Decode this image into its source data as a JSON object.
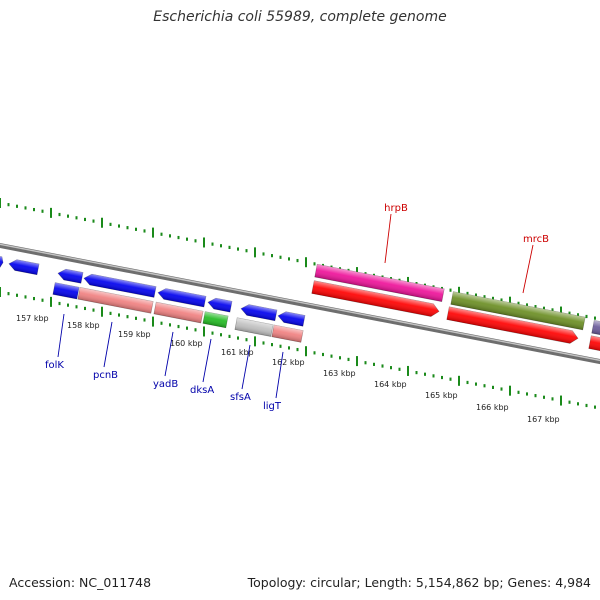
{
  "title": "Escherichia coli 55989, complete genome",
  "footer": {
    "accession": "Accession: NC_011748",
    "summary": "Topology: circular; Length: 5,154,862 bp; Genes: 4,984"
  },
  "colors": {
    "backbone": "#8a8a8a",
    "ticks": "#1a8a1a",
    "blue_gene": "#0000ee",
    "salmon_gene": "#f08080",
    "green_gene": "#22bb22",
    "grey_gene": "#c0c0c0",
    "magenta_gene": "#ee1199",
    "red_gene": "#ff0000",
    "olive_gene": "#6b8e23",
    "purple_gene": "#6a5a9a",
    "label_blue": "#0000aa",
    "label_red": "#cc0000"
  },
  "ruler": {
    "labels": [
      "157 kbp",
      "158 kbp",
      "159 kbp",
      "160 kbp",
      "161 kbp",
      "162 kbp",
      "163 kbp",
      "164 kbp",
      "165 kbp",
      "166 kbp",
      "167 kbp"
    ]
  },
  "genes": [
    {
      "label": "folK",
      "color_key": "label_blue"
    },
    {
      "label": "pcnB",
      "color_key": "label_blue"
    },
    {
      "label": "yadB",
      "color_key": "label_blue"
    },
    {
      "label": "dksA",
      "color_key": "label_blue"
    },
    {
      "label": "sfsA",
      "color_key": "label_blue"
    },
    {
      "label": "ligT",
      "color_key": "label_blue"
    },
    {
      "label": "hrpB",
      "color_key": "label_red"
    },
    {
      "label": "mrcB",
      "color_key": "label_red"
    }
  ]
}
